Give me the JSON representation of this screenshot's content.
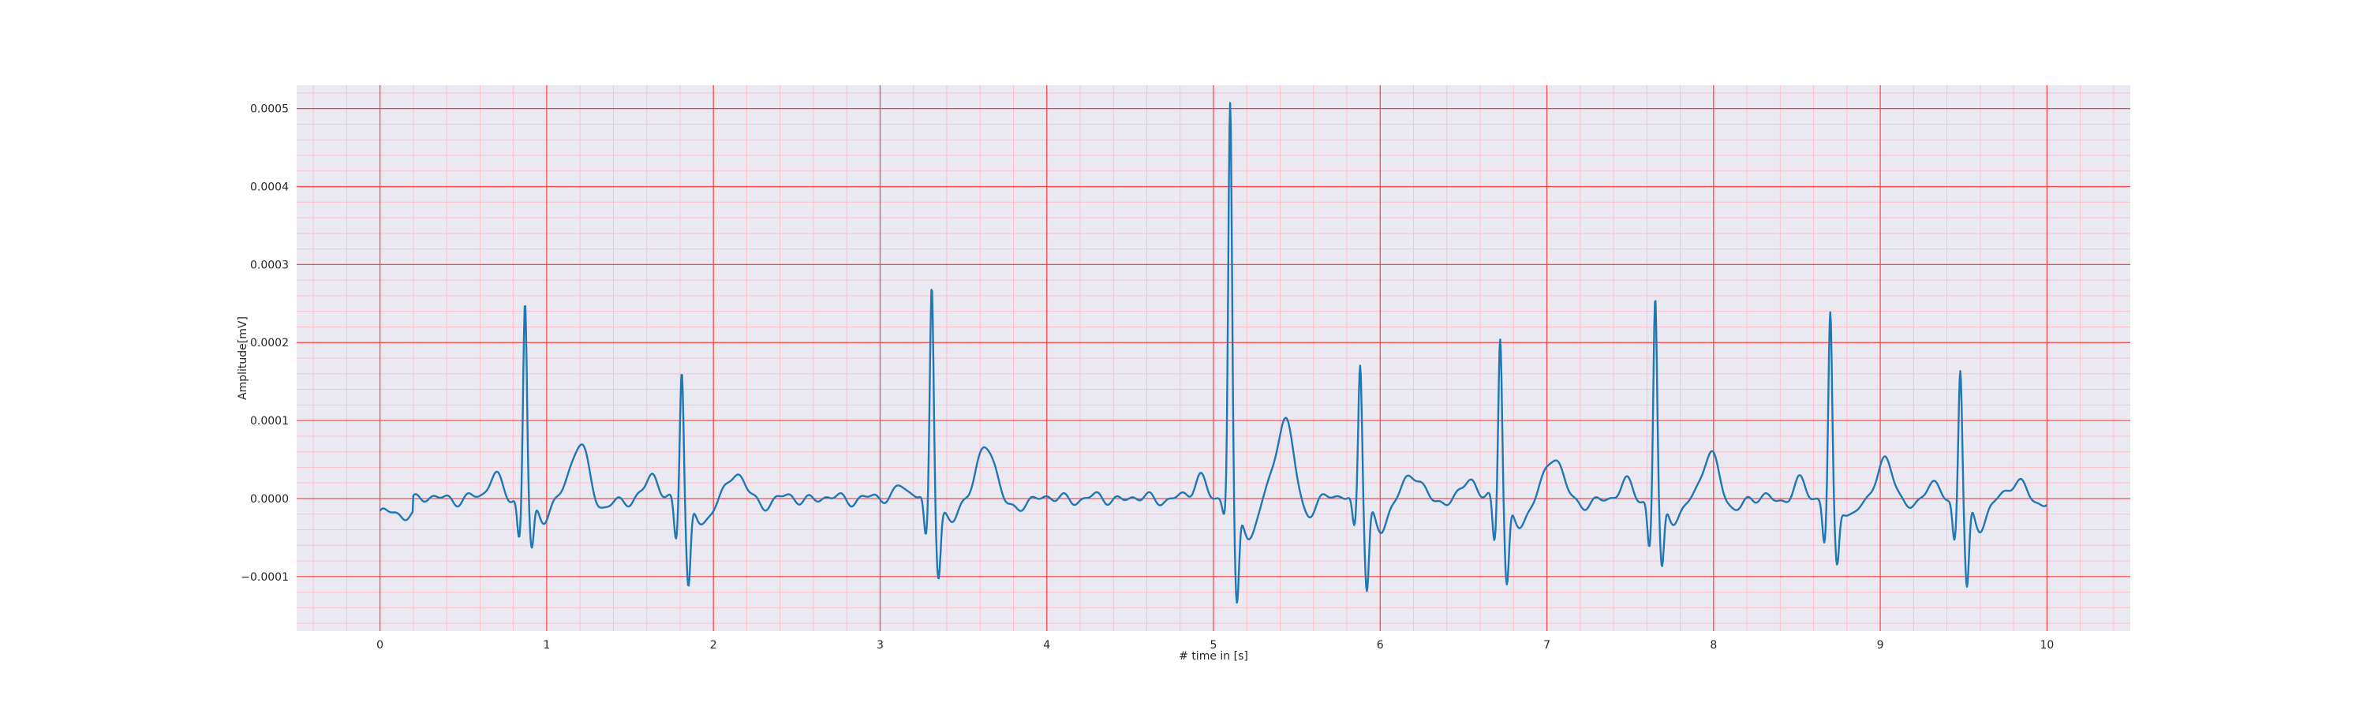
{
  "chart_data": {
    "type": "line",
    "title": "",
    "xlabel": "# time in [s]",
    "ylabel": "Amplitude[mV]",
    "xlim": [
      -0.5,
      10.5
    ],
    "ylim": [
      -0.00017,
      0.00053
    ],
    "x_ticks": [
      0,
      1,
      2,
      3,
      4,
      5,
      6,
      7,
      8,
      9,
      10
    ],
    "x_tick_labels": [
      "0",
      "1",
      "2",
      "3",
      "4",
      "5",
      "6",
      "7",
      "8",
      "9",
      "10"
    ],
    "y_ticks": [
      -0.0001,
      0.0,
      0.0001,
      0.0002,
      0.0003,
      0.0004,
      0.0005
    ],
    "y_tick_labels": [
      "−0.0001",
      "0.0000",
      "0.0001",
      "0.0002",
      "0.0003",
      "0.0004",
      "0.0005"
    ],
    "grid": true,
    "grid_major_color": "#ff4040",
    "grid_minor_color": "#ffc0cb",
    "background_color": "#eae9f2",
    "series": [
      {
        "color": "#1f77b4",
        "baseline": {
          "start": -2e-05,
          "noise": 7e-06
        },
        "beats": [
          {
            "t": 0.87,
            "r": 0.00025,
            "q": -5.5e-05,
            "s": -6.5e-05,
            "p": 3.5e-05,
            "tw": 7e-05
          },
          {
            "t": 1.81,
            "r": 0.000172,
            "q": -5e-05,
            "s": -0.00011,
            "p": 3e-05,
            "tw": 3e-05
          },
          {
            "t": 3.31,
            "r": 0.000275,
            "q": -5.5e-05,
            "s": -9e-05,
            "p": 2e-05,
            "tw": 7e-05
          },
          {
            "t": 5.1,
            "r": 0.000505,
            "q": -2e-05,
            "s": -0.000135,
            "p": 3e-05,
            "tw": 0.0001
          },
          {
            "t": 5.88,
            "r": 0.000175,
            "q": -4e-05,
            "s": -0.000113,
            "p": 1e-05,
            "tw": 3e-05
          },
          {
            "t": 6.72,
            "r": 0.000212,
            "q": -6e-05,
            "s": -0.000105,
            "p": 3e-05,
            "tw": 5.5e-05
          },
          {
            "t": 7.65,
            "r": 0.00026,
            "q": -6e-05,
            "s": -9e-05,
            "p": 2e-05,
            "tw": 5.3e-05
          },
          {
            "t": 8.7,
            "r": 0.000238,
            "q": -5.5e-05,
            "s": -8e-05,
            "p": 2e-05,
            "tw": 4.5e-05
          },
          {
            "t": 9.48,
            "r": 0.000172,
            "q": -5e-05,
            "s": -0.000113,
            "p": 2e-05,
            "tw": 2e-05
          }
        ]
      }
    ]
  }
}
